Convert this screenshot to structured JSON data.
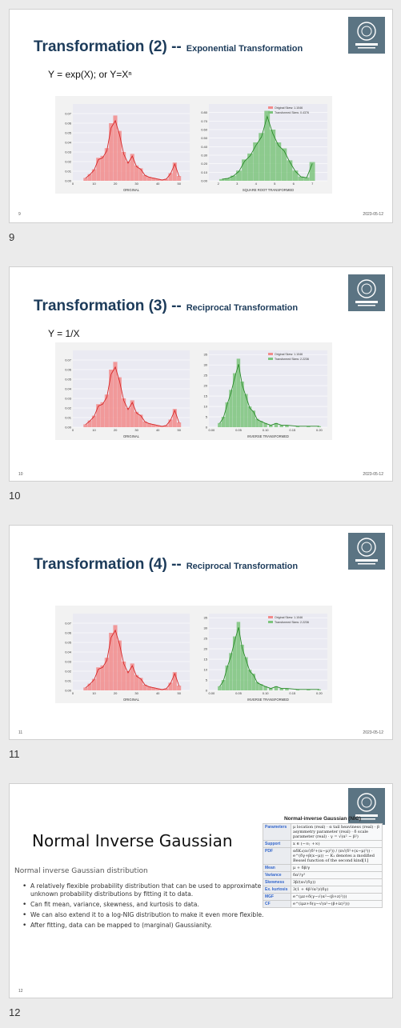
{
  "slides": [
    {
      "number_label": "9",
      "footer_page": "9",
      "footer_date": "2023-05-12",
      "title_main": "Transformation (2) --",
      "title_sub": "Exponential Transformation",
      "formula": "Y = exp(X); or Y=Xⁿ",
      "legend": [
        "Original Skew: 1.1046",
        "Transformed Skew: 0.4376"
      ],
      "left_xlabel": "ORIGINAL",
      "right_xlabel": "SQUARE ROOT TRANSFORMED"
    },
    {
      "number_label": "10",
      "footer_page": "10",
      "footer_date": "2023-05-12",
      "title_main": "Transformation (3) --",
      "title_sub": "Reciprocal Transformation",
      "formula": "Y = 1/X",
      "legend": [
        "Original Skew: 1.1046",
        "Transformed Skew: 2.2236"
      ],
      "left_xlabel": "ORIGINAL",
      "right_xlabel": "INVERSE TRANSFORMED"
    },
    {
      "number_label": "11",
      "footer_page": "11",
      "footer_date": "2023-05-12",
      "title_main": "Transformation (4) --",
      "title_sub": "Reciprocal Transformation",
      "formula": "",
      "legend": [
        "Original Skew: 1.1046",
        "Transformed Skew: 2.2236"
      ],
      "left_xlabel": "ORIGINAL",
      "right_xlabel": "INVERSE TRANSFORMED"
    }
  ],
  "nig_slide": {
    "number_label": "12",
    "footer_page": "12",
    "title": "Normal Inverse Gaussian",
    "subtitle": "Normal inverse Gaussian distribution",
    "bullets": [
      "A relatively flexible probability distribution that can be used to approximate unknown probability distributions by fitting it to data.",
      "Can fit mean, variance, skewness, and kurtosis to data.",
      "We can also extend it to a log-NIG distribution to make it even more flexible.",
      "After fitting, data can be mapped to (marginal) Gaussianity."
    ],
    "infobox": {
      "title": "Normal-inverse Gaussian (NIG)",
      "rows": [
        {
          "key": "Parameters",
          "value": "μ location (real) · α tail heaviness (real) · β asymmetry parameter (real) · δ scale parameter (real) · γ = √(α² − β²)"
        },
        {
          "key": "Support",
          "value": "x ∈ (−∞; +∞)"
        },
        {
          "key": "PDF",
          "value": "αδK₁(α√(δ²+(x−μ)²)) / (π√(δ²+(x−μ)²)) · e^(δγ+β(x−μ)) — K₁ denotes a modified Bessel function of the second kind[1]"
        },
        {
          "key": "Mean",
          "value": "μ + δβ/γ"
        },
        {
          "key": "Variance",
          "value": "δα²/γ³"
        },
        {
          "key": "Skewness",
          "value": "3β/(α√(δγ))"
        },
        {
          "key": "Ex. kurtosis",
          "value": "3(1 + 4β²/α²)/(δγ)"
        },
        {
          "key": "MGF",
          "value": "e^(μz+δ(γ−√(α²−(β+z)²)))"
        },
        {
          "key": "CF",
          "value": "e^(iμz+δ(γ−√(α²−(β+iz)²)))"
        }
      ]
    }
  },
  "colors": {
    "title": "#1c3b5a",
    "red_hist": "#f28b8b",
    "red_line": "#d62728",
    "green_hist": "#7cc47c",
    "green_line": "#2a8a2a",
    "logo_bg": "#5b7483"
  },
  "chart_data": [
    {
      "type": "bar",
      "title": "",
      "xlabel": "ORIGINAL",
      "ylabel": "",
      "xlim": [
        0,
        55
      ],
      "ylim": [
        0,
        0.08
      ],
      "x_ticks": [
        0,
        10,
        20,
        30,
        40,
        50
      ],
      "y_ticks": [
        0.0,
        0.01,
        0.02,
        0.03,
        0.04,
        0.05,
        0.06,
        0.07
      ],
      "series": [
        {
          "name": "Original Skew: 1.1046",
          "bins_center": [
            6,
            8,
            10,
            12,
            14,
            16,
            18,
            20,
            22,
            24,
            26,
            28,
            30,
            32,
            34,
            36,
            38,
            40,
            42,
            44,
            46,
            48,
            50
          ],
          "values": [
            0.003,
            0.007,
            0.012,
            0.024,
            0.026,
            0.034,
            0.06,
            0.068,
            0.052,
            0.03,
            0.02,
            0.028,
            0.016,
            0.013,
            0.006,
            0.004,
            0.003,
            0.002,
            0.001,
            0.002,
            0.008,
            0.019,
            0.005
          ]
        }
      ]
    },
    {
      "type": "bar",
      "title": "",
      "xlabel": "SQUARE ROOT TRANSFORMED",
      "ylabel": "",
      "xlim": [
        1.5,
        7.8
      ],
      "ylim": [
        0,
        0.9
      ],
      "x_ticks": [
        2,
        3,
        4,
        5,
        6,
        7
      ],
      "y_ticks": [
        0.0,
        0.1,
        0.2,
        0.3,
        0.4,
        0.5,
        0.6,
        0.7,
        0.8
      ],
      "series": [
        {
          "name": "Transformed Skew: 0.4376",
          "bins_center": [
            2.2,
            2.5,
            2.8,
            3.1,
            3.4,
            3.7,
            4.0,
            4.3,
            4.6,
            4.9,
            5.2,
            5.5,
            5.8,
            6.1,
            6.4,
            6.7,
            7.0
          ],
          "values": [
            0.02,
            0.03,
            0.06,
            0.12,
            0.25,
            0.32,
            0.45,
            0.56,
            0.82,
            0.6,
            0.45,
            0.38,
            0.24,
            0.12,
            0.05,
            0.04,
            0.22
          ]
        }
      ]
    },
    {
      "type": "bar",
      "title": "",
      "xlabel": "INVERSE TRANSFORMED",
      "ylabel": "",
      "xlim": [
        -0.005,
        0.215
      ],
      "ylim": [
        0,
        37
      ],
      "x_ticks": [
        0.0,
        0.05,
        0.1,
        0.15,
        0.2
      ],
      "y_ticks": [
        0,
        5,
        10,
        15,
        20,
        25,
        30,
        35
      ],
      "series": [
        {
          "name": "Transformed Skew: 2.2236",
          "bins_center": [
            0.015,
            0.022,
            0.029,
            0.036,
            0.043,
            0.05,
            0.057,
            0.064,
            0.071,
            0.078,
            0.085,
            0.092,
            0.1,
            0.11,
            0.12,
            0.13,
            0.14,
            0.16,
            0.18,
            0.2
          ],
          "values": [
            2,
            5,
            12,
            18,
            26,
            33,
            22,
            16,
            10,
            8,
            4,
            3,
            2,
            1,
            2,
            1,
            1,
            0.5,
            0.5,
            0.5
          ]
        }
      ]
    }
  ]
}
